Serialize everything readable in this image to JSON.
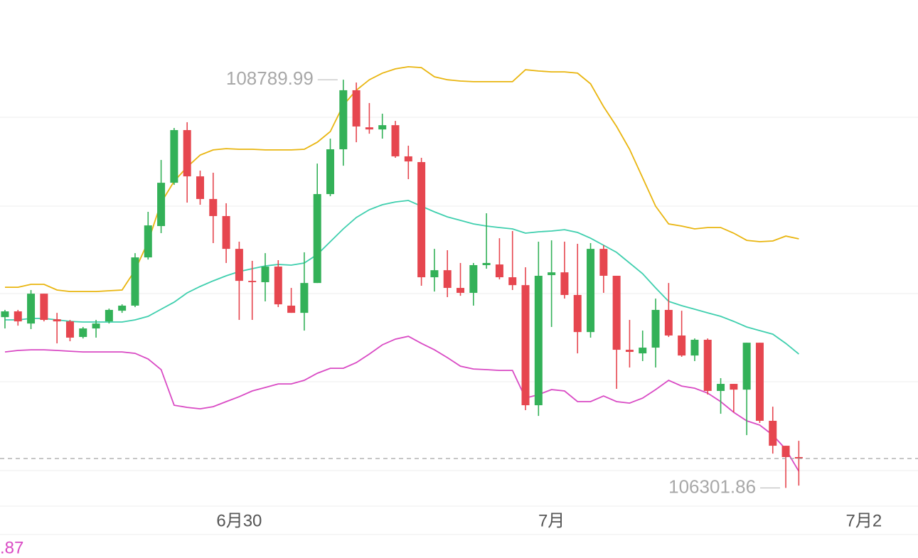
{
  "chart_data": {
    "type": "candlestick",
    "x": [
      0,
      1,
      2,
      3,
      4,
      5,
      6,
      7,
      8,
      9,
      10,
      11,
      12,
      13,
      14,
      15,
      16,
      17,
      18,
      19,
      20,
      21,
      22,
      23,
      24,
      25,
      26,
      27,
      28,
      29,
      30,
      31,
      32,
      33,
      34,
      35,
      36,
      37,
      38,
      39,
      40,
      41,
      42,
      43,
      44,
      45,
      46,
      47,
      48,
      49,
      50,
      51,
      52,
      53,
      54,
      55,
      56,
      57,
      58,
      59,
      60,
      61
    ],
    "open": [
      107343,
      107378,
      107304,
      107486,
      107330,
      107317,
      107222,
      107274,
      107317,
      107382,
      107413,
      107707,
      107898,
      108162,
      108483,
      108201,
      108063,
      107959,
      107759,
      107564,
      107556,
      107651,
      107413,
      107369,
      107551,
      108093,
      108366,
      108726,
      108500,
      108487,
      108513,
      108323,
      108288,
      107586,
      107629,
      107521,
      107491,
      107660,
      107664,
      107586,
      107538,
      106806,
      107599,
      107616,
      107478,
      107252,
      107759,
      107595,
      107144,
      107122,
      107157,
      107387,
      107231,
      107109,
      107205,
      106893,
      106936,
      106901,
      107187,
      106711,
      106559,
      106490
    ],
    "high": [
      107387,
      107387,
      107508,
      107486,
      107369,
      107326,
      107283,
      107326,
      107395,
      107421,
      107733,
      107985,
      108301,
      108496,
      108531,
      108236,
      108223,
      108037,
      107803,
      107686,
      107733,
      107690,
      107521,
      107738,
      108279,
      108431,
      108789.99,
      108773,
      108648,
      108583,
      108539,
      108388,
      108314,
      107759,
      107751,
      107673,
      107673,
      107976,
      107824,
      107868,
      107647,
      107803,
      107811,
      107803,
      107790,
      107794,
      107781,
      107595,
      107326,
      107261,
      107456,
      107551,
      107382,
      107213,
      107213,
      106971,
      106936,
      107187,
      107187,
      106797,
      106559,
      106589
    ],
    "low": [
      107274,
      107291,
      107270,
      107317,
      107183,
      107196,
      107213,
      107218,
      107304,
      107369,
      107404,
      107694,
      107855,
      108149,
      108041,
      108028,
      107794,
      107673,
      107326,
      107326,
      107439,
      107404,
      107369,
      107261,
      107551,
      108080,
      108266,
      108409,
      108461,
      108431,
      108314,
      108184,
      107534,
      107499,
      107465,
      107473,
      107413,
      107638,
      107573,
      107508,
      106776,
      106741,
      107283,
      107456,
      107122,
      107218,
      107491,
      106906,
      107036,
      107075,
      107036,
      107222,
      107101,
      107075,
      106871,
      106754,
      106763,
      106624,
      106698,
      106511,
      106301.86,
      106316
    ],
    "close": [
      107378,
      107317,
      107486,
      107326,
      107317,
      107218,
      107274,
      107304,
      107387,
      107413,
      107707,
      107902,
      108162,
      108483,
      108201,
      108063,
      107959,
      107759,
      107564,
      107556,
      107651,
      107421,
      107369,
      107551,
      108093,
      108366,
      108726,
      108505,
      108487,
      108513,
      108323,
      108292,
      107586,
      107629,
      107521,
      107491,
      107660,
      107673,
      107586,
      107538,
      106806,
      107595,
      107616,
      107478,
      107252,
      107759,
      107595,
      107144,
      107131,
      107157,
      107387,
      107231,
      107109,
      107205,
      106893,
      106936,
      106901,
      107187,
      106711,
      106559,
      106490,
      106481
    ],
    "up_color": "#33b158",
    "down_color": "#e6464f",
    "bands": {
      "upper": {
        "color": "#e9b50f",
        "values": [
          107525,
          107525,
          107543,
          107543,
          107508,
          107499,
          107499,
          107499,
          107504,
          107508,
          107629,
          107803,
          108041,
          108171,
          108258,
          108331,
          108362,
          108370,
          108366,
          108366,
          108362,
          108362,
          108362,
          108366,
          108409,
          108474,
          108635,
          108726,
          108790,
          108830,
          108856,
          108869,
          108864,
          108808,
          108790,
          108782,
          108778,
          108778,
          108778,
          108778,
          108851,
          108843,
          108838,
          108838,
          108830,
          108765,
          108626,
          108505,
          108366,
          108193,
          108019,
          107911,
          107898,
          107881,
          107889,
          107889,
          107855,
          107811,
          107803,
          107807,
          107837,
          107820
        ]
      },
      "middle": {
        "color": "#3fcfae",
        "values": [
          107326,
          107326,
          107335,
          107335,
          107326,
          107317,
          107313,
          107313,
          107313,
          107313,
          107326,
          107348,
          107391,
          107434,
          107491,
          107530,
          107564,
          107595,
          107621,
          107638,
          107655,
          107664,
          107660,
          107673,
          107725,
          107803,
          107881,
          107950,
          107998,
          108028,
          108045,
          108054,
          108019,
          107985,
          107954,
          107933,
          107911,
          107898,
          107889,
          107881,
          107855,
          107863,
          107868,
          107876,
          107859,
          107824,
          107781,
          107738,
          107673,
          107608,
          107521,
          107439,
          107413,
          107391,
          107369,
          107348,
          107317,
          107283,
          107261,
          107239,
          107183,
          107118
        ]
      },
      "lower": {
        "color": "#d94ac4",
        "values": [
          107131,
          107140,
          107144,
          107144,
          107140,
          107135,
          107131,
          107131,
          107131,
          107131,
          107122,
          107088,
          107023,
          106806,
          106793,
          106784,
          106797,
          106828,
          106858,
          106893,
          106914,
          106936,
          106936,
          106958,
          107001,
          107031,
          107031,
          107066,
          107118,
          107174,
          107209,
          107226,
          107183,
          107144,
          107096,
          107044,
          107027,
          107023,
          107018,
          107018,
          106849,
          106871,
          106901,
          106893,
          106828,
          106828,
          106862,
          106828,
          106819,
          106849,
          106901,
          106958,
          106923,
          106910,
          106880,
          106828,
          106763,
          106711,
          106685,
          106624,
          106537,
          106403
        ]
      }
    },
    "high_label": "108789.99",
    "low_label": "106301.86",
    "lower_band_label": ".87",
    "xlim": [
      -0.38,
      70.16
    ],
    "ylim": [
      106191,
      109276
    ],
    "xticks": [
      {
        "value": 18,
        "label": "6月30"
      },
      {
        "value": 42,
        "label": "7月"
      },
      {
        "value": 66,
        "label": "7月2"
      }
    ]
  }
}
